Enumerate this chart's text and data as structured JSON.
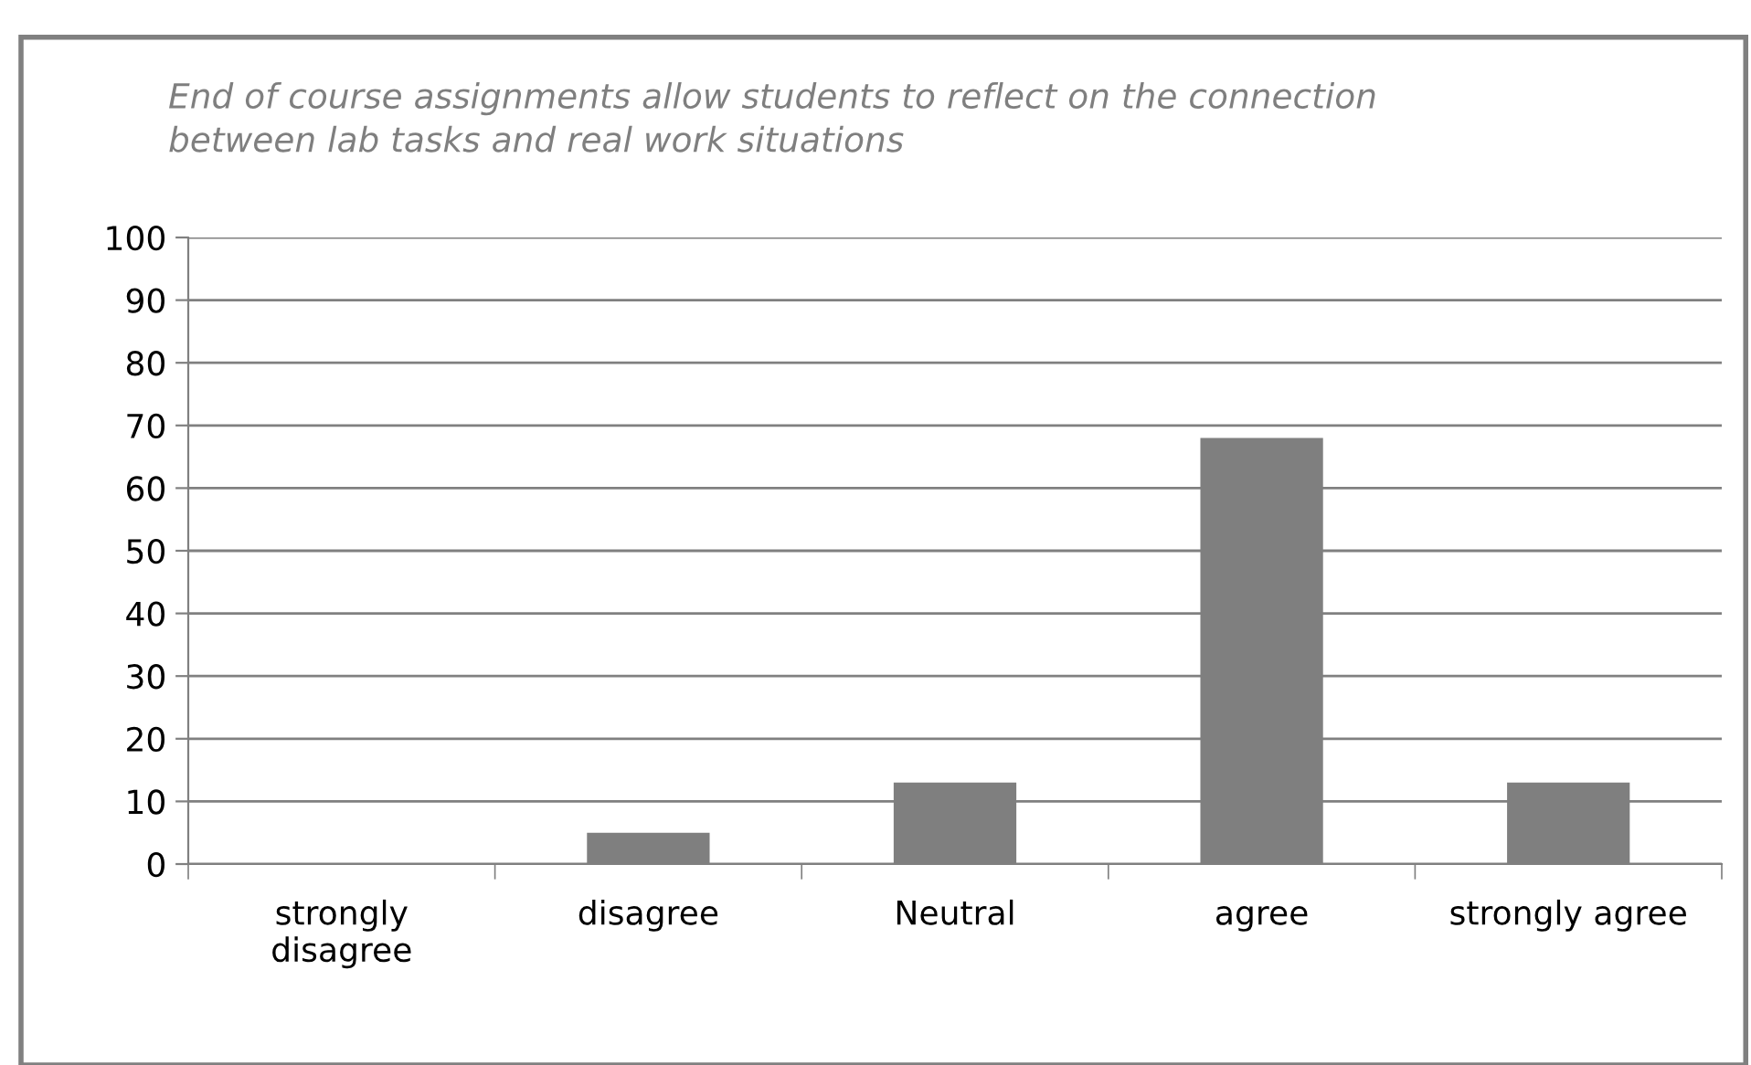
{
  "chart_data": {
    "type": "bar",
    "title": "End of course assignments allow students to reflect on the connection\nbetween lab tasks and real work situations",
    "categories": [
      "strongly\ndisagree",
      "disagree",
      "Neutral",
      "agree",
      "strongly agree"
    ],
    "values": [
      0,
      5,
      13,
      68,
      13
    ],
    "color": "#7f7f7f",
    "ylim": [
      0,
      100
    ],
    "yticks": [
      0,
      10,
      20,
      30,
      40,
      50,
      60,
      70,
      80,
      90,
      100
    ],
    "grid": "y"
  }
}
